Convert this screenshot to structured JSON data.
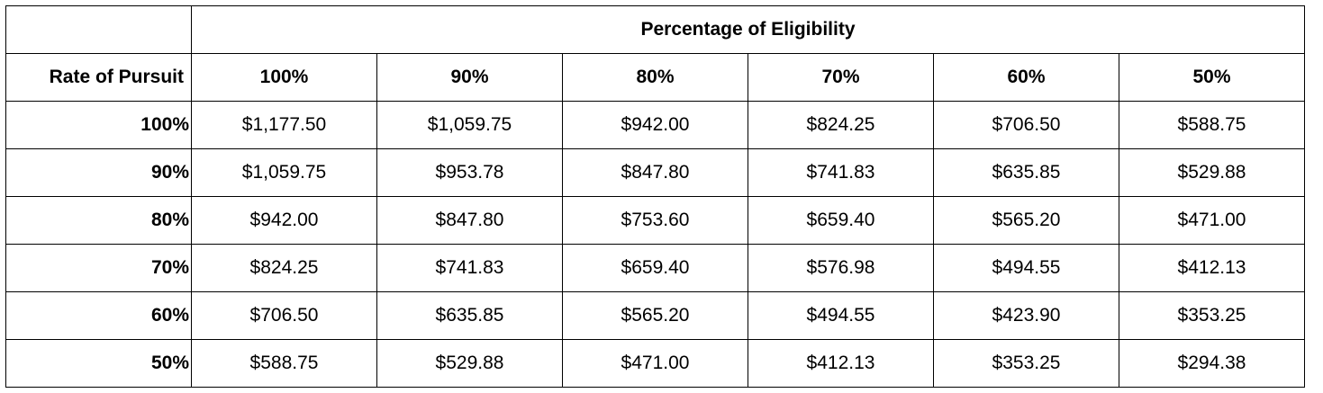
{
  "table": {
    "group_header": "Percentage of Eligibility",
    "row_header_label": "Rate of Pursuit",
    "columns": [
      "100%",
      "90%",
      "80%",
      "70%",
      "60%",
      "50%"
    ],
    "rows": [
      {
        "label": "100%",
        "values": [
          "$1,177.50",
          "$1,059.75",
          "$942.00",
          "$824.25",
          "$706.50",
          "$588.75"
        ]
      },
      {
        "label": "90%",
        "values": [
          "$1,059.75",
          "$953.78",
          "$847.80",
          "$741.83",
          "$635.85",
          "$529.88"
        ]
      },
      {
        "label": "80%",
        "values": [
          "$942.00",
          "$847.80",
          "$753.60",
          "$659.40",
          "$565.20",
          "$471.00"
        ]
      },
      {
        "label": "70%",
        "values": [
          "$824.25",
          "$741.83",
          "$659.40",
          "$576.98",
          "$494.55",
          "$412.13"
        ]
      },
      {
        "label": "60%",
        "values": [
          "$706.50",
          "$635.85",
          "$565.20",
          "$494.55",
          "$423.90",
          "$353.25"
        ]
      },
      {
        "label": "50%",
        "values": [
          "$588.75",
          "$529.88",
          "$471.00",
          "$412.13",
          "$353.25",
          "$294.38"
        ]
      }
    ]
  }
}
